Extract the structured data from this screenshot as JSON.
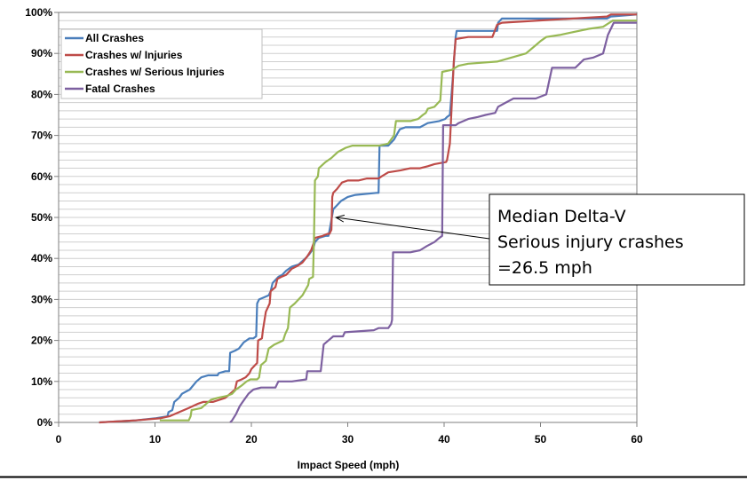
{
  "chart_data": {
    "type": "line",
    "title": "",
    "xlabel": "Impact Speed (mph)",
    "ylabel": "",
    "xlim": [
      0,
      60
    ],
    "ylim": [
      0,
      100
    ],
    "x_ticks": [
      {
        "value": 0,
        "label": "0"
      },
      {
        "value": 10,
        "label": "10"
      },
      {
        "value": 20,
        "label": "20"
      },
      {
        "value": 30,
        "label": "30"
      },
      {
        "value": 40,
        "label": "40"
      },
      {
        "value": 50,
        "label": "50"
      },
      {
        "value": 60,
        "label": "60"
      }
    ],
    "y_ticks": [
      {
        "value": 0,
        "label": "0%"
      },
      {
        "value": 10,
        "label": "10%"
      },
      {
        "value": 20,
        "label": "20%"
      },
      {
        "value": 30,
        "label": "30%"
      },
      {
        "value": 40,
        "label": "40%"
      },
      {
        "value": 50,
        "label": "50%"
      },
      {
        "value": 60,
        "label": "60%"
      },
      {
        "value": 70,
        "label": "70%"
      },
      {
        "value": 80,
        "label": "80%"
      },
      {
        "value": 90,
        "label": "90%"
      },
      {
        "value": 100,
        "label": "100%"
      }
    ],
    "grid": true,
    "legend_position": "top-left",
    "series": [
      {
        "name": "All Crashes",
        "color": "#4a7ebb",
        "points": [
          [
            4.2,
            0
          ],
          [
            8,
            0.5
          ],
          [
            10,
            1
          ],
          [
            11.3,
            1.5
          ],
          [
            11.4,
            2.5
          ],
          [
            11.8,
            3
          ],
          [
            12,
            5
          ],
          [
            12.5,
            6
          ],
          [
            12.8,
            7
          ],
          [
            13.6,
            8
          ],
          [
            14.3,
            10
          ],
          [
            14.8,
            11
          ],
          [
            15.5,
            11.5
          ],
          [
            16.5,
            11.5
          ],
          [
            16.6,
            12
          ],
          [
            17.3,
            12.5
          ],
          [
            17.7,
            12.5
          ],
          [
            17.8,
            17
          ],
          [
            18.3,
            17.5
          ],
          [
            18.7,
            18
          ],
          [
            19.2,
            19.5
          ],
          [
            19.8,
            20.5
          ],
          [
            20.2,
            20.5
          ],
          [
            20.5,
            21
          ],
          [
            20.6,
            29
          ],
          [
            20.8,
            30
          ],
          [
            21.3,
            30.5
          ],
          [
            21.8,
            31
          ],
          [
            22,
            32
          ],
          [
            22.2,
            34
          ],
          [
            22.8,
            35.5
          ],
          [
            23.2,
            36
          ],
          [
            23.6,
            37
          ],
          [
            24.2,
            38
          ],
          [
            24.9,
            38.5
          ],
          [
            25.6,
            40
          ],
          [
            26,
            41
          ],
          [
            26.3,
            42
          ],
          [
            26.5,
            43
          ],
          [
            26.6,
            44
          ],
          [
            27,
            45
          ],
          [
            27.7,
            45.5
          ],
          [
            28,
            45.5
          ],
          [
            28.2,
            48
          ],
          [
            28.5,
            52
          ],
          [
            28.9,
            53
          ],
          [
            29.3,
            54
          ],
          [
            30,
            55
          ],
          [
            30.8,
            55.5
          ],
          [
            33,
            56
          ],
          [
            33.2,
            56
          ],
          [
            33.3,
            67.5
          ],
          [
            34.2,
            67.5
          ],
          [
            34.8,
            69
          ],
          [
            35.4,
            71.5
          ],
          [
            36,
            72
          ],
          [
            37.5,
            72
          ],
          [
            38.3,
            73
          ],
          [
            39.5,
            73.5
          ],
          [
            40.1,
            74
          ],
          [
            40.3,
            74.5
          ],
          [
            40.6,
            75
          ],
          [
            40.9,
            84
          ],
          [
            41.2,
            94
          ],
          [
            41.3,
            95.5
          ],
          [
            42.5,
            95.5
          ],
          [
            45.5,
            95.5
          ],
          [
            45.6,
            97.5
          ],
          [
            46,
            98.5
          ],
          [
            47,
            98.5
          ],
          [
            56.9,
            98.5
          ],
          [
            57.3,
            99
          ],
          [
            60,
            99.5
          ]
        ]
      },
      {
        "name": "Crashes w/ Injuries",
        "color": "#be4b48",
        "points": [
          [
            4.2,
            0
          ],
          [
            8,
            0.5
          ],
          [
            10.5,
            1
          ],
          [
            11.5,
            1.5
          ],
          [
            12,
            2
          ],
          [
            13.5,
            3.5
          ],
          [
            14.4,
            4.5
          ],
          [
            15,
            5
          ],
          [
            16,
            5
          ],
          [
            17.3,
            6
          ],
          [
            17.8,
            7
          ],
          [
            18.3,
            8
          ],
          [
            18.5,
            10
          ],
          [
            19,
            10.5
          ],
          [
            19.4,
            11
          ],
          [
            19.8,
            12
          ],
          [
            20,
            13
          ],
          [
            20.4,
            14
          ],
          [
            20.6,
            14.5
          ],
          [
            20.7,
            20
          ],
          [
            21.1,
            20.5
          ],
          [
            21.2,
            22.5
          ],
          [
            21.5,
            27
          ],
          [
            21.9,
            29
          ],
          [
            22,
            32
          ],
          [
            22.5,
            33
          ],
          [
            22.7,
            35
          ],
          [
            23.1,
            35.5
          ],
          [
            23.6,
            36
          ],
          [
            24.2,
            37.5
          ],
          [
            24.8,
            38.2
          ],
          [
            25.3,
            39
          ],
          [
            25.8,
            40.5
          ],
          [
            26.2,
            42
          ],
          [
            26.5,
            44
          ],
          [
            26.6,
            45
          ],
          [
            27.4,
            45.5
          ],
          [
            27.9,
            46
          ],
          [
            28.1,
            46
          ],
          [
            28.3,
            47
          ],
          [
            28.4,
            55
          ],
          [
            28.5,
            56
          ],
          [
            28.9,
            57
          ],
          [
            29.4,
            58.5
          ],
          [
            30,
            59
          ],
          [
            31.1,
            59
          ],
          [
            32,
            59.5
          ],
          [
            33.2,
            59.5
          ],
          [
            33.5,
            60
          ],
          [
            34.2,
            61
          ],
          [
            35.5,
            61.5
          ],
          [
            36.5,
            62
          ],
          [
            37.5,
            62
          ],
          [
            38.3,
            62.5
          ],
          [
            39,
            63
          ],
          [
            40.2,
            63.5
          ],
          [
            40.3,
            64
          ],
          [
            40.6,
            68
          ],
          [
            41,
            88
          ],
          [
            41.2,
            93.5
          ],
          [
            42.5,
            94
          ],
          [
            45,
            94
          ],
          [
            45.5,
            97
          ],
          [
            46,
            97.5
          ],
          [
            56.9,
            99
          ],
          [
            57.3,
            99.5
          ],
          [
            60,
            99.5
          ]
        ]
      },
      {
        "name": "Crashes w/ Serious Injuries",
        "color": "#98b954",
        "points": [
          [
            10.5,
            0.5
          ],
          [
            13.5,
            0.5
          ],
          [
            13.7,
            1.5
          ],
          [
            13.8,
            3
          ],
          [
            14.8,
            3.5
          ],
          [
            15.3,
            4.5
          ],
          [
            15.8,
            5.5
          ],
          [
            16.5,
            6
          ],
          [
            17.5,
            6.5
          ],
          [
            18,
            7
          ],
          [
            18.4,
            8
          ],
          [
            18.7,
            8.5
          ],
          [
            19,
            9
          ],
          [
            19.5,
            10
          ],
          [
            19.9,
            10.5
          ],
          [
            20.6,
            10.5
          ],
          [
            20.8,
            11
          ],
          [
            21,
            14
          ],
          [
            21.5,
            15
          ],
          [
            21.8,
            18
          ],
          [
            22.4,
            19
          ],
          [
            23.3,
            20
          ],
          [
            23.5,
            21.5
          ],
          [
            23.8,
            23
          ],
          [
            24,
            28
          ],
          [
            24.5,
            29
          ],
          [
            25.3,
            31
          ],
          [
            25.9,
            33.5
          ],
          [
            26,
            35
          ],
          [
            26.4,
            35.5
          ],
          [
            26.5,
            45
          ],
          [
            26.6,
            59
          ],
          [
            26.9,
            60
          ],
          [
            27,
            62
          ],
          [
            27.7,
            63.5
          ],
          [
            28.3,
            64.5
          ],
          [
            29,
            66
          ],
          [
            29.8,
            67
          ],
          [
            30.5,
            67.5
          ],
          [
            33.3,
            67.5
          ],
          [
            34.2,
            68
          ],
          [
            34.8,
            70
          ],
          [
            35,
            73.5
          ],
          [
            36.5,
            73.5
          ],
          [
            37.3,
            74
          ],
          [
            37.8,
            75
          ],
          [
            38.1,
            75.5
          ],
          [
            38.3,
            76.5
          ],
          [
            39,
            77
          ],
          [
            39.4,
            78
          ],
          [
            39.6,
            78.5
          ],
          [
            39.8,
            85.5
          ],
          [
            40.8,
            86
          ],
          [
            41.5,
            87
          ],
          [
            42.5,
            87.5
          ],
          [
            45.5,
            88
          ],
          [
            47,
            89
          ],
          [
            48.5,
            90
          ],
          [
            49.5,
            92
          ],
          [
            50,
            93
          ],
          [
            50.6,
            94
          ],
          [
            52,
            94.5
          ],
          [
            53,
            95
          ],
          [
            55,
            96
          ],
          [
            56.5,
            96.5
          ],
          [
            57.5,
            98
          ],
          [
            60,
            98
          ]
        ]
      },
      {
        "name": "Fatal Crashes",
        "color": "#7d60a0",
        "points": [
          [
            17.8,
            0
          ],
          [
            18,
            0.5
          ],
          [
            18.4,
            2
          ],
          [
            18.8,
            4
          ],
          [
            19.1,
            5
          ],
          [
            19.7,
            7
          ],
          [
            20.2,
            8
          ],
          [
            21,
            8.5
          ],
          [
            22.5,
            8.5
          ],
          [
            22.8,
            10
          ],
          [
            24.2,
            10
          ],
          [
            25.7,
            10.5
          ],
          [
            25.8,
            12.5
          ],
          [
            27.2,
            12.5
          ],
          [
            27.5,
            19
          ],
          [
            28,
            20
          ],
          [
            28.5,
            21
          ],
          [
            29.5,
            21
          ],
          [
            29.7,
            22
          ],
          [
            32.7,
            22.5
          ],
          [
            33.2,
            23
          ],
          [
            34.2,
            23
          ],
          [
            34.5,
            24
          ],
          [
            34.6,
            25
          ],
          [
            34.7,
            41.5
          ],
          [
            35.4,
            41.5
          ],
          [
            36.5,
            41.5
          ],
          [
            37.5,
            42
          ],
          [
            38.2,
            43
          ],
          [
            39,
            44
          ],
          [
            39.5,
            45
          ],
          [
            39.8,
            45.5
          ],
          [
            39.9,
            72.5
          ],
          [
            41.2,
            72.5
          ],
          [
            41.5,
            73
          ],
          [
            42.5,
            74
          ],
          [
            43.5,
            74.5
          ],
          [
            44.3,
            75
          ],
          [
            45.3,
            75.5
          ],
          [
            45.6,
            77
          ],
          [
            46.4,
            78
          ],
          [
            47.2,
            79
          ],
          [
            49.5,
            79
          ],
          [
            50.6,
            80
          ],
          [
            51.2,
            86.5
          ],
          [
            53.6,
            86.5
          ],
          [
            54.5,
            88.5
          ],
          [
            55.5,
            89
          ],
          [
            56.5,
            90
          ],
          [
            57,
            94.5
          ],
          [
            57.5,
            97
          ],
          [
            57.6,
            97.5
          ],
          [
            60,
            97.5
          ]
        ]
      }
    ],
    "annotation": {
      "lines": [
        "Median Delta-V",
        "Serious injury crashes",
        "=26.5 mph"
      ],
      "target": [
        28.5,
        50
      ]
    }
  }
}
